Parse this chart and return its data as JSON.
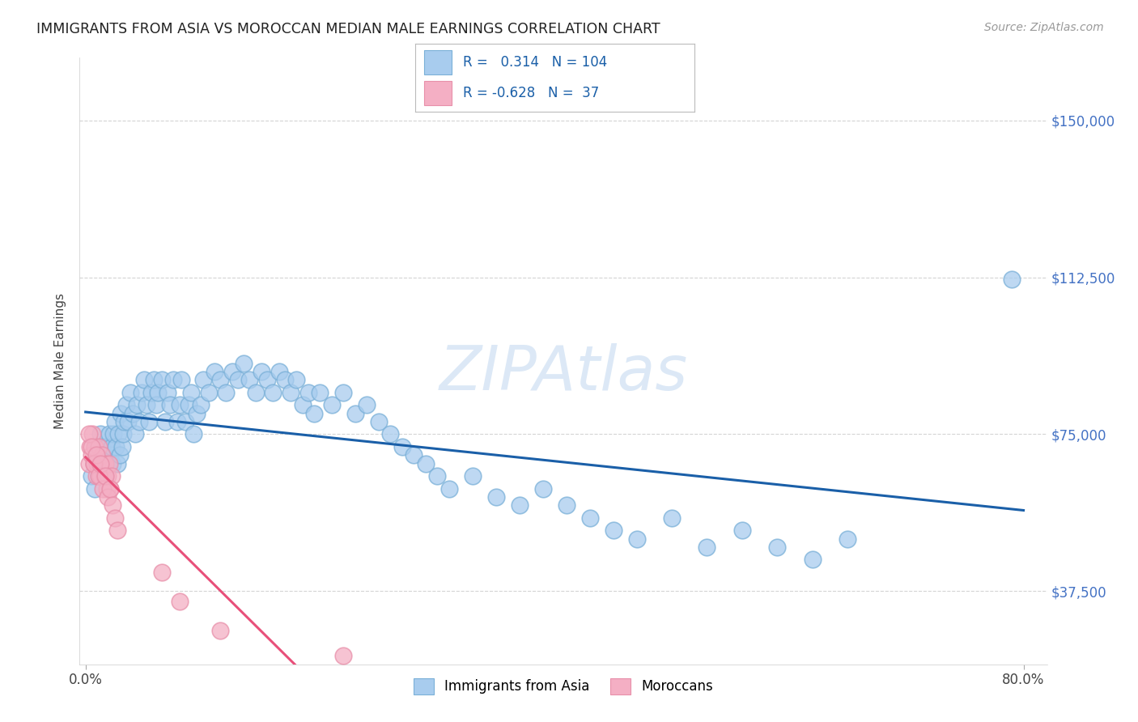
{
  "title": "IMMIGRANTS FROM ASIA VS MOROCCAN MEDIAN MALE EARNINGS CORRELATION CHART",
  "source": "Source: ZipAtlas.com",
  "ylabel": "Median Male Earnings",
  "xlim": [
    -0.005,
    0.82
  ],
  "ylim": [
    20000,
    165000
  ],
  "ytick_values": [
    37500,
    75000,
    112500,
    150000
  ],
  "ytick_labels": [
    "$37,500",
    "$75,000",
    "$112,500",
    "$150,000"
  ],
  "r_asia": 0.314,
  "n_asia": 104,
  "r_moroccan": -0.628,
  "n_moroccan": 37,
  "color_asia": "#a8ccee",
  "color_moroccan": "#f4afc4",
  "trendline_asia": "#1a5fa8",
  "trendline_moroccan": "#e8507a",
  "watermark": "ZIPAtlas",
  "background_color": "#ffffff",
  "grid_color": "#d0d0d0",
  "asia_x": [
    0.005,
    0.007,
    0.008,
    0.009,
    0.01,
    0.011,
    0.012,
    0.013,
    0.014,
    0.015,
    0.016,
    0.017,
    0.018,
    0.019,
    0.02,
    0.021,
    0.022,
    0.023,
    0.024,
    0.025,
    0.026,
    0.027,
    0.028,
    0.029,
    0.03,
    0.031,
    0.032,
    0.033,
    0.035,
    0.036,
    0.038,
    0.04,
    0.042,
    0.044,
    0.046,
    0.048,
    0.05,
    0.052,
    0.054,
    0.056,
    0.058,
    0.06,
    0.062,
    0.065,
    0.068,
    0.07,
    0.072,
    0.075,
    0.078,
    0.08,
    0.082,
    0.085,
    0.088,
    0.09,
    0.092,
    0.095,
    0.098,
    0.1,
    0.105,
    0.11,
    0.115,
    0.12,
    0.125,
    0.13,
    0.135,
    0.14,
    0.145,
    0.15,
    0.155,
    0.16,
    0.165,
    0.17,
    0.175,
    0.18,
    0.185,
    0.19,
    0.195,
    0.2,
    0.21,
    0.22,
    0.23,
    0.24,
    0.25,
    0.26,
    0.27,
    0.28,
    0.29,
    0.3,
    0.31,
    0.33,
    0.35,
    0.37,
    0.39,
    0.41,
    0.43,
    0.45,
    0.47,
    0.5,
    0.53,
    0.56,
    0.59,
    0.62,
    0.65,
    0.79
  ],
  "asia_y": [
    65000,
    68000,
    62000,
    72000,
    70000,
    65000,
    68000,
    75000,
    72000,
    68000,
    70000,
    65000,
    72000,
    68000,
    75000,
    70000,
    72000,
    68000,
    75000,
    78000,
    72000,
    68000,
    75000,
    70000,
    80000,
    72000,
    75000,
    78000,
    82000,
    78000,
    85000,
    80000,
    75000,
    82000,
    78000,
    85000,
    88000,
    82000,
    78000,
    85000,
    88000,
    82000,
    85000,
    88000,
    78000,
    85000,
    82000,
    88000,
    78000,
    82000,
    88000,
    78000,
    82000,
    85000,
    75000,
    80000,
    82000,
    88000,
    85000,
    90000,
    88000,
    85000,
    90000,
    88000,
    92000,
    88000,
    85000,
    90000,
    88000,
    85000,
    90000,
    88000,
    85000,
    88000,
    82000,
    85000,
    80000,
    85000,
    82000,
    85000,
    80000,
    82000,
    78000,
    75000,
    72000,
    70000,
    68000,
    65000,
    62000,
    65000,
    60000,
    58000,
    62000,
    58000,
    55000,
    52000,
    50000,
    55000,
    48000,
    52000,
    48000,
    45000,
    50000,
    112000
  ],
  "moroccan_x": [
    0.003,
    0.004,
    0.005,
    0.006,
    0.007,
    0.008,
    0.009,
    0.01,
    0.011,
    0.012,
    0.013,
    0.014,
    0.015,
    0.016,
    0.017,
    0.018,
    0.019,
    0.02,
    0.021,
    0.022,
    0.003,
    0.005,
    0.007,
    0.009,
    0.011,
    0.013,
    0.015,
    0.017,
    0.019,
    0.021,
    0.023,
    0.025,
    0.027,
    0.065,
    0.08,
    0.115,
    0.22
  ],
  "moroccan_y": [
    68000,
    72000,
    70000,
    75000,
    68000,
    72000,
    65000,
    68000,
    72000,
    68000,
    65000,
    70000,
    68000,
    65000,
    68000,
    62000,
    65000,
    68000,
    62000,
    65000,
    75000,
    72000,
    68000,
    70000,
    65000,
    68000,
    62000,
    65000,
    60000,
    62000,
    58000,
    55000,
    52000,
    42000,
    35000,
    28000,
    22000
  ],
  "legend_r1": "R =   0.314   N = 104",
  "legend_r2": "R = -0.628   N =  37"
}
